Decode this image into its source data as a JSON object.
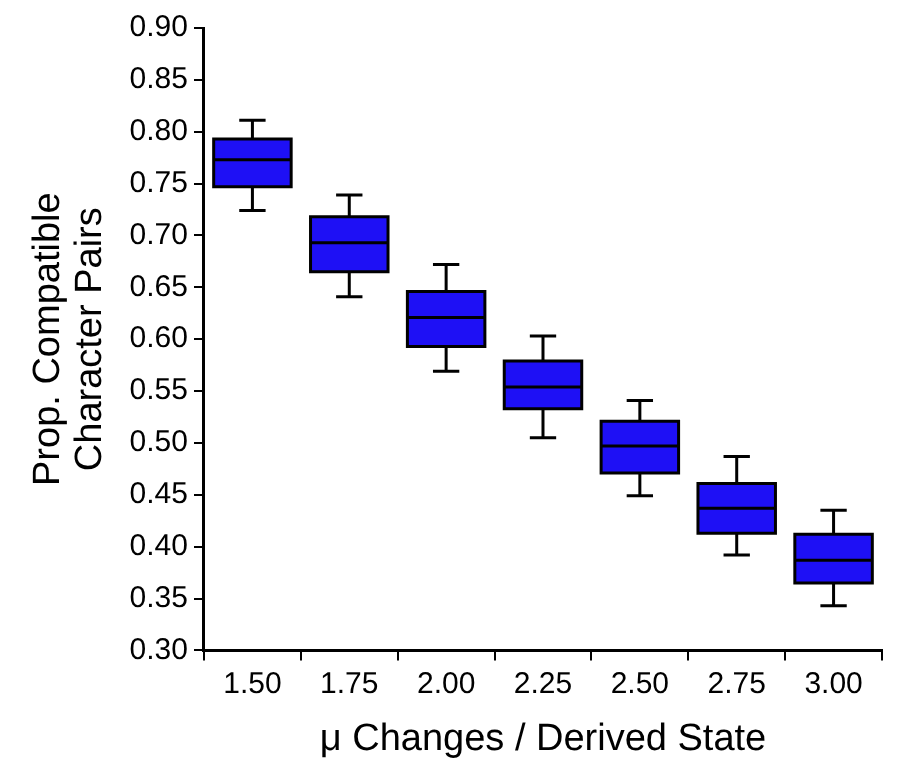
{
  "chart_data": {
    "type": "box",
    "xlabel": "μ Changes / Derived State",
    "ylabel": "Prop. Compatible Character Pairs",
    "categories": [
      "1.50",
      "1.75",
      "2.00",
      "2.25",
      "2.50",
      "2.75",
      "3.00"
    ],
    "color": "#1e10f5",
    "boxes": [
      {
        "low": 0.724,
        "q1": 0.747,
        "median": 0.773,
        "q3": 0.793,
        "high": 0.811
      },
      {
        "low": 0.641,
        "q1": 0.665,
        "median": 0.693,
        "q3": 0.718,
        "high": 0.739
      },
      {
        "low": 0.569,
        "q1": 0.593,
        "median": 0.621,
        "q3": 0.646,
        "high": 0.672
      },
      {
        "low": 0.505,
        "q1": 0.533,
        "median": 0.554,
        "q3": 0.579,
        "high": 0.603
      },
      {
        "low": 0.449,
        "q1": 0.471,
        "median": 0.497,
        "q3": 0.521,
        "high": 0.541
      },
      {
        "low": 0.392,
        "q1": 0.413,
        "median": 0.437,
        "q3": 0.461,
        "high": 0.487
      },
      {
        "low": 0.343,
        "q1": 0.365,
        "median": 0.387,
        "q3": 0.412,
        "high": 0.435
      }
    ],
    "ylim": [
      0.3,
      0.9
    ],
    "yticks": [
      {
        "value": 0.3,
        "label": "0.30"
      },
      {
        "value": 0.35,
        "label": "0.35"
      },
      {
        "value": 0.4,
        "label": "0.40"
      },
      {
        "value": 0.45,
        "label": "0.45"
      },
      {
        "value": 0.5,
        "label": "0.50"
      },
      {
        "value": 0.55,
        "label": "0.55"
      },
      {
        "value": 0.6,
        "label": "0.60"
      },
      {
        "value": 0.65,
        "label": "0.65"
      },
      {
        "value": 0.7,
        "label": "0.70"
      },
      {
        "value": 0.75,
        "label": "0.75"
      },
      {
        "value": 0.8,
        "label": "0.80"
      },
      {
        "value": 0.85,
        "label": "0.85"
      },
      {
        "value": 0.9,
        "label": "0.90"
      }
    ],
    "grid": false
  }
}
